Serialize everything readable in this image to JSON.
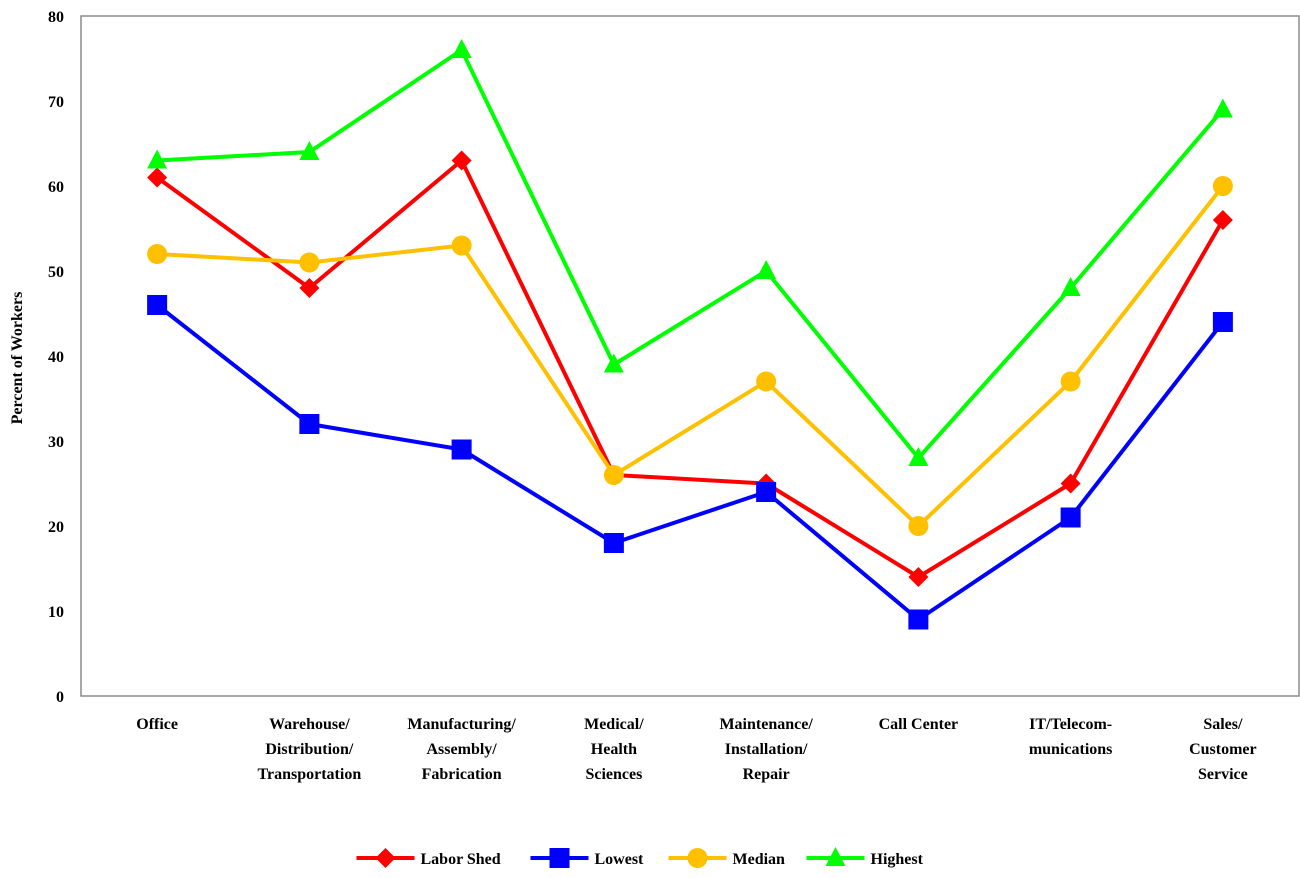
{
  "chart_data": {
    "type": "line",
    "title": "",
    "xlabel": "",
    "ylabel": "Percent of Workers",
    "ylim": [
      0,
      80
    ],
    "yticks": [
      0,
      10,
      20,
      30,
      40,
      50,
      60,
      70,
      80
    ],
    "grid": false,
    "legend_position": "bottom",
    "categories": [
      [
        "Office"
      ],
      [
        "Warehouse/",
        "Distribution/",
        "Transportation"
      ],
      [
        "Manufacturing/",
        "Assembly/",
        "Fabrication"
      ],
      [
        "Medical/",
        "Health",
        "Sciences"
      ],
      [
        "Maintenance/",
        "Installation/",
        "Repair"
      ],
      [
        "Call Center"
      ],
      [
        "IT/Telecom-",
        "munications"
      ],
      [
        "Sales/",
        "Customer",
        "Service"
      ]
    ],
    "series": [
      {
        "name": "Labor Shed",
        "color": "#ff0000",
        "marker": "diamond",
        "values": [
          61,
          48,
          63,
          26,
          25,
          14,
          25,
          56
        ]
      },
      {
        "name": "Lowest",
        "color": "#0000ff",
        "marker": "square",
        "values": [
          46,
          32,
          29,
          18,
          24,
          9,
          21,
          44
        ]
      },
      {
        "name": "Median",
        "color": "#ffc000",
        "marker": "circle",
        "values": [
          52,
          51,
          53,
          26,
          37,
          20,
          37,
          60
        ]
      },
      {
        "name": "Highest",
        "color": "#00ff00",
        "marker": "triangle",
        "values": [
          63,
          64,
          76,
          39,
          50,
          28,
          48,
          69
        ]
      }
    ]
  }
}
